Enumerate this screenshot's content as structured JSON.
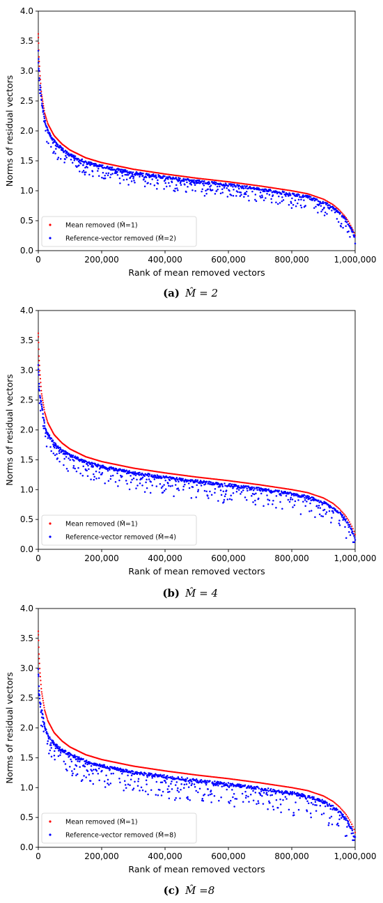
{
  "colors": {
    "mean_removed": "#ff0000",
    "reference_removed": "#0000ff",
    "axes": "#000000"
  },
  "chart_data": [
    {
      "type": "scatter",
      "panel_label": "(a)",
      "caption": "M̂ = 2",
      "xlabel": "Rank of mean removed vectors",
      "ylabel": "Norms of residual vectors",
      "xlim": [
        0,
        1000000
      ],
      "ylim": [
        0,
        4.0
      ],
      "xticks": [
        "0",
        "200,000",
        "400,000",
        "600,000",
        "800,000",
        "1,000,000"
      ],
      "yticks": [
        "0.0",
        "0.5",
        "1.0",
        "1.5",
        "2.0",
        "2.5",
        "3.0",
        "3.5",
        "4.0"
      ],
      "legend_location": "lower-left",
      "grid": false,
      "series": [
        {
          "name": "Mean removed (M̂=1)",
          "color": "#ff0000",
          "x": [
            0,
            2000,
            5000,
            10000,
            20000,
            30000,
            50000,
            75000,
            100000,
            150000,
            200000,
            300000,
            400000,
            500000,
            600000,
            700000,
            800000,
            850000,
            900000,
            930000,
            950000,
            970000,
            980000,
            990000,
            995000,
            1000000
          ],
          "y": [
            3.62,
            3.25,
            2.95,
            2.62,
            2.3,
            2.12,
            1.92,
            1.78,
            1.68,
            1.55,
            1.47,
            1.36,
            1.28,
            1.21,
            1.15,
            1.08,
            1.0,
            0.95,
            0.86,
            0.77,
            0.68,
            0.56,
            0.48,
            0.38,
            0.32,
            0.25
          ]
        },
        {
          "name": "Reference-vector removed (M̂=2)",
          "color": "#0000ff",
          "x": [
            0,
            2000,
            5000,
            10000,
            20000,
            30000,
            50000,
            75000,
            100000,
            150000,
            200000,
            300000,
            400000,
            500000,
            600000,
            700000,
            800000,
            850000,
            900000,
            930000,
            950000,
            970000,
            980000,
            990000,
            995000,
            1000000
          ],
          "y": [
            3.35,
            3.05,
            2.8,
            2.55,
            2.2,
            2.02,
            1.85,
            1.72,
            1.62,
            1.5,
            1.43,
            1.32,
            1.25,
            1.18,
            1.12,
            1.05,
            0.97,
            0.92,
            0.83,
            0.74,
            0.66,
            0.54,
            0.46,
            0.36,
            0.3,
            0.22
          ],
          "spread": 0.22
        }
      ]
    },
    {
      "type": "scatter",
      "panel_label": "(b)",
      "caption": "M̂ = 4",
      "xlabel": "Rank of mean removed vectors",
      "ylabel": "Norms of residual vectors",
      "xlim": [
        0,
        1000000
      ],
      "ylim": [
        0,
        4.0
      ],
      "xticks": [
        "0",
        "200,000",
        "400,000",
        "600,000",
        "800,000",
        "1,000,000"
      ],
      "yticks": [
        "0.0",
        "0.5",
        "1.0",
        "1.5",
        "2.0",
        "2.5",
        "3.0",
        "3.5",
        "4.0"
      ],
      "legend_location": "lower-left",
      "grid": false,
      "series": [
        {
          "name": "Mean removed (M̂=1)",
          "color": "#ff0000",
          "x": [
            0,
            2000,
            5000,
            10000,
            20000,
            30000,
            50000,
            75000,
            100000,
            150000,
            200000,
            300000,
            400000,
            500000,
            600000,
            700000,
            800000,
            850000,
            900000,
            930000,
            950000,
            970000,
            980000,
            990000,
            995000,
            1000000
          ],
          "y": [
            3.62,
            3.25,
            2.95,
            2.62,
            2.3,
            2.12,
            1.92,
            1.78,
            1.68,
            1.55,
            1.47,
            1.36,
            1.28,
            1.21,
            1.15,
            1.08,
            1.0,
            0.95,
            0.86,
            0.77,
            0.68,
            0.56,
            0.48,
            0.38,
            0.32,
            0.25
          ]
        },
        {
          "name": "Reference-vector removed (M̂=4)",
          "color": "#0000ff",
          "x": [
            0,
            2000,
            5000,
            10000,
            20000,
            30000,
            50000,
            75000,
            100000,
            150000,
            200000,
            300000,
            400000,
            500000,
            600000,
            700000,
            800000,
            850000,
            900000,
            930000,
            950000,
            970000,
            980000,
            990000,
            995000,
            1000000
          ],
          "y": [
            3.1,
            2.85,
            2.6,
            2.45,
            2.1,
            1.95,
            1.8,
            1.68,
            1.6,
            1.48,
            1.41,
            1.3,
            1.23,
            1.16,
            1.1,
            1.03,
            0.95,
            0.9,
            0.81,
            0.72,
            0.64,
            0.52,
            0.44,
            0.34,
            0.28,
            0.2
          ],
          "spread": 0.3
        }
      ]
    },
    {
      "type": "scatter",
      "panel_label": "(c)",
      "caption": "M̂ =8",
      "xlabel": "Rank of mean removed vectors",
      "ylabel": "Norms of residual vectors",
      "xlim": [
        0,
        1000000
      ],
      "ylim": [
        0,
        4.0
      ],
      "xticks": [
        "0",
        "200,000",
        "400,000",
        "600,000",
        "800,000",
        "1,000,000"
      ],
      "yticks": [
        "0.0",
        "0.5",
        "1.0",
        "1.5",
        "2.0",
        "2.5",
        "3.0",
        "3.5",
        "4.0"
      ],
      "legend_location": "lower-left",
      "grid": false,
      "series": [
        {
          "name": "Mean removed (M̂=1)",
          "color": "#ff0000",
          "x": [
            0,
            2000,
            5000,
            10000,
            20000,
            30000,
            50000,
            75000,
            100000,
            150000,
            200000,
            300000,
            400000,
            500000,
            600000,
            700000,
            800000,
            850000,
            900000,
            930000,
            950000,
            970000,
            980000,
            990000,
            995000,
            1000000
          ],
          "y": [
            3.62,
            3.25,
            2.95,
            2.62,
            2.3,
            2.12,
            1.92,
            1.78,
            1.68,
            1.55,
            1.47,
            1.36,
            1.28,
            1.21,
            1.15,
            1.08,
            1.0,
            0.95,
            0.86,
            0.77,
            0.68,
            0.56,
            0.48,
            0.38,
            0.32,
            0.25
          ]
        },
        {
          "name": "Reference-vector removed (M̂=8)",
          "color": "#0000ff",
          "x": [
            0,
            2000,
            5000,
            10000,
            20000,
            30000,
            50000,
            75000,
            100000,
            150000,
            200000,
            300000,
            400000,
            500000,
            600000,
            700000,
            800000,
            850000,
            900000,
            930000,
            950000,
            970000,
            980000,
            990000,
            995000,
            1000000
          ],
          "y": [
            3.0,
            2.7,
            2.5,
            2.35,
            2.05,
            1.9,
            1.76,
            1.65,
            1.58,
            1.46,
            1.39,
            1.28,
            1.21,
            1.14,
            1.08,
            1.01,
            0.93,
            0.88,
            0.79,
            0.7,
            0.62,
            0.5,
            0.42,
            0.32,
            0.26,
            0.18
          ],
          "spread": 0.35
        }
      ]
    }
  ]
}
